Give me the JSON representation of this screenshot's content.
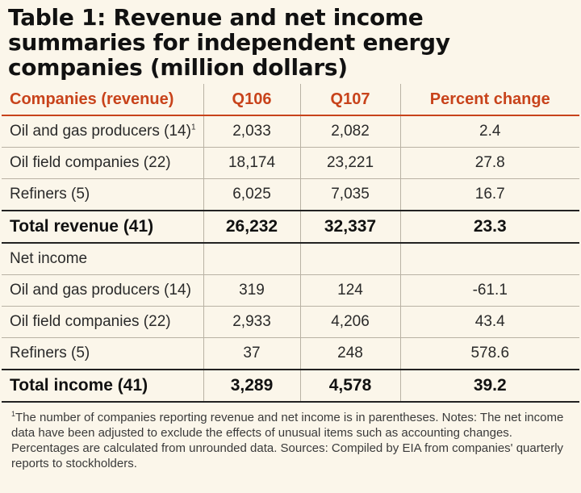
{
  "title": {
    "line1": "Table 1: Revenue and net income",
    "line2": "summaries for independent energy",
    "line3": "companies (million dollars)"
  },
  "header": {
    "col1": "Companies (revenue)",
    "col2": "Q106",
    "col3": "Q107",
    "col4": "Percent change"
  },
  "rows": [
    {
      "label": "Oil and gas producers (14)",
      "sup": "1",
      "q106": "2,033",
      "q107": "2,082",
      "pct": "2.4"
    },
    {
      "label": "Oil field companies (22)",
      "sup": "",
      "q106": "18,174",
      "q107": "23,221",
      "pct": "27.8"
    },
    {
      "label": "Refiners (5)",
      "sup": "",
      "q106": "6,025",
      "q107": "7,035",
      "pct": "16.7"
    },
    {
      "label": "Total revenue (41)",
      "sup": "",
      "q106": "26,232",
      "q107": "32,337",
      "pct": "23.3"
    },
    {
      "label": "Net income",
      "sup": "",
      "q106": "",
      "q107": "",
      "pct": ""
    },
    {
      "label": "Oil and gas producers (14)",
      "sup": "",
      "q106": "319",
      "q107": "124",
      "pct": "-61.1"
    },
    {
      "label": "Oil field companies (22)",
      "sup": "",
      "q106": "2,933",
      "q107": "4,206",
      "pct": "43.4"
    },
    {
      "label": "Refiners (5)",
      "sup": "",
      "q106": "37",
      "q107": "248",
      "pct": "578.6"
    },
    {
      "label": "Total income (41)",
      "sup": "",
      "q106": "3,289",
      "q107": "4,578",
      "pct": "39.2"
    }
  ],
  "footnote": {
    "mark": "1",
    "text": "The number of companies reporting revenue and net income is in parentheses. Notes: The net income data have been adjusted to exclude the effects of unusual items such as accounting changes. Percentages are calculated from unrounded data. Sources: Compiled by EIA from companies' quarterly reports to stockholders."
  },
  "colors": {
    "header_text": "#c8431b",
    "background": "#fbf6ea"
  }
}
